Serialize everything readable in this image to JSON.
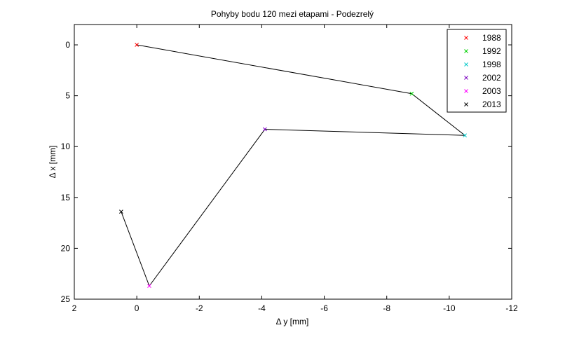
{
  "chart_data": {
    "type": "line",
    "title": "Pohyby bodu 120 mezi etapami - Podezrelý",
    "xlabel": "Δ y [mm]",
    "ylabel": "Δ x [mm]",
    "xlim": [
      2,
      -12
    ],
    "ylim": [
      25,
      -2
    ],
    "x_reversed": true,
    "y_reversed": true,
    "xticks": [
      2,
      0,
      -2,
      -4,
      -6,
      -8,
      -10,
      -12
    ],
    "xtick_labels": [
      "2",
      "0",
      "-2",
      "-4",
      "-6",
      "-8",
      "-10",
      "-12"
    ],
    "yticks": [
      0,
      5,
      10,
      15,
      20,
      25
    ],
    "ytick_labels": [
      "0",
      "5",
      "10",
      "15",
      "20",
      "25"
    ],
    "grid": false,
    "legend_position": "top-right",
    "line_color": "#000000",
    "points": [
      {
        "year": "1988",
        "x": 0.0,
        "y": 0.0,
        "color": "#ff0000"
      },
      {
        "year": "1992",
        "x": -8.8,
        "y": 4.8,
        "color": "#00d000"
      },
      {
        "year": "1998",
        "x": -10.5,
        "y": 8.9,
        "color": "#00c8c8"
      },
      {
        "year": "2002",
        "x": -4.1,
        "y": 8.3,
        "color": "#7a00c0"
      },
      {
        "year": "2003",
        "x": -0.4,
        "y": 23.7,
        "color": "#ff00ff"
      },
      {
        "year": "2013",
        "x": 0.5,
        "y": 16.4,
        "color": "#000000"
      }
    ]
  }
}
